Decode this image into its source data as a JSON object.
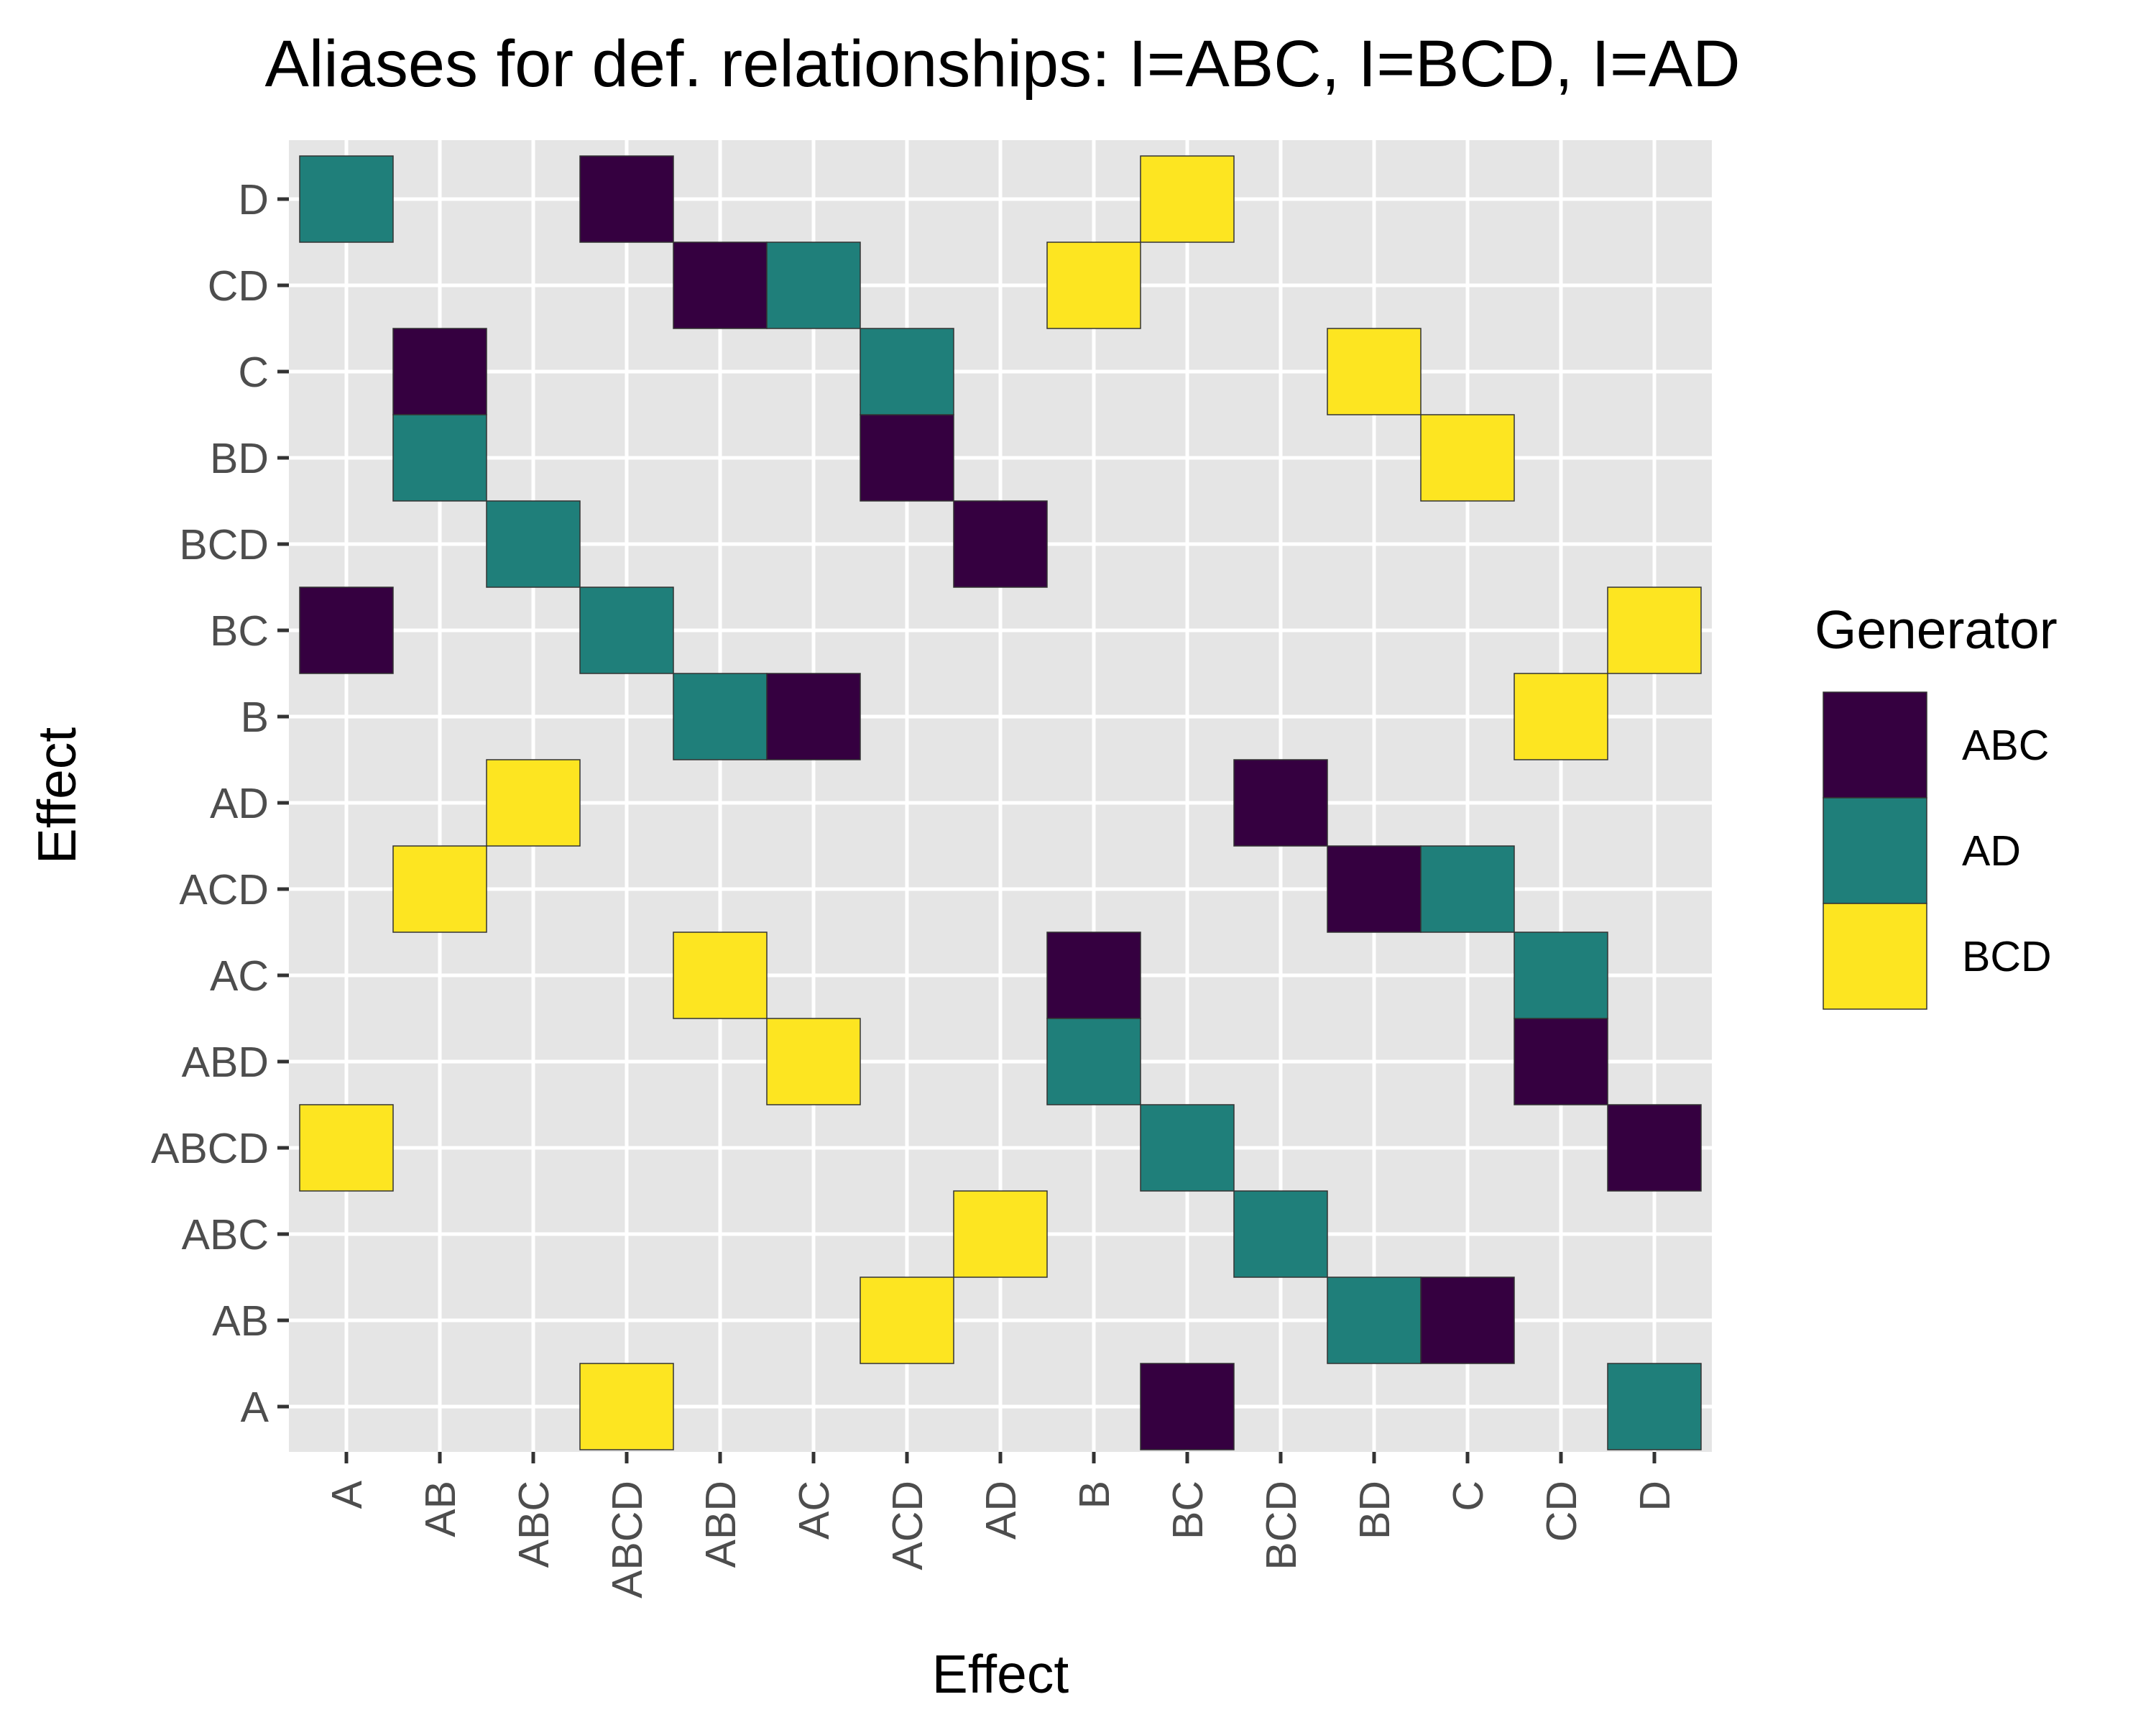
{
  "chart_data": {
    "type": "heatmap",
    "title": "Aliases for def. relationships: I=ABC, I=BCD, I=AD",
    "xlabel": "Effect",
    "ylabel": "Effect",
    "x_categories": [
      "A",
      "AB",
      "ABC",
      "ABCD",
      "ABD",
      "AC",
      "ACD",
      "AD",
      "B",
      "BC",
      "BCD",
      "BD",
      "C",
      "CD",
      "D"
    ],
    "y_categories": [
      "A",
      "AB",
      "ABC",
      "ABCD",
      "ABD",
      "AC",
      "ACD",
      "AD",
      "B",
      "BC",
      "BCD",
      "BD",
      "C",
      "CD",
      "D"
    ],
    "legend": {
      "title": "Generator",
      "position": "right",
      "entries": [
        {
          "label": "ABC",
          "color": "#350040"
        },
        {
          "label": "AD",
          "color": "#1f7f7a"
        },
        {
          "label": "BCD",
          "color": "#fde521"
        }
      ]
    },
    "grid": true,
    "background_color": "#e5e5e5",
    "grid_color": "#ffffff",
    "cells": [
      {
        "x": "A",
        "y": "BC",
        "generator": "ABC"
      },
      {
        "x": "A",
        "y": "D",
        "generator": "AD"
      },
      {
        "x": "A",
        "y": "ABCD",
        "generator": "BCD"
      },
      {
        "x": "AB",
        "y": "C",
        "generator": "ABC"
      },
      {
        "x": "AB",
        "y": "BD",
        "generator": "AD"
      },
      {
        "x": "AB",
        "y": "ACD",
        "generator": "BCD"
      },
      {
        "x": "ABC",
        "y": "BCD",
        "generator": "AD"
      },
      {
        "x": "ABC",
        "y": "AD",
        "generator": "BCD"
      },
      {
        "x": "ABCD",
        "y": "D",
        "generator": "ABC"
      },
      {
        "x": "ABCD",
        "y": "BC",
        "generator": "AD"
      },
      {
        "x": "ABCD",
        "y": "A",
        "generator": "BCD"
      },
      {
        "x": "ABD",
        "y": "CD",
        "generator": "ABC"
      },
      {
        "x": "ABD",
        "y": "B",
        "generator": "AD"
      },
      {
        "x": "ABD",
        "y": "AC",
        "generator": "BCD"
      },
      {
        "x": "AC",
        "y": "B",
        "generator": "ABC"
      },
      {
        "x": "AC",
        "y": "CD",
        "generator": "AD"
      },
      {
        "x": "AC",
        "y": "ABD",
        "generator": "BCD"
      },
      {
        "x": "ACD",
        "y": "BD",
        "generator": "ABC"
      },
      {
        "x": "ACD",
        "y": "C",
        "generator": "AD"
      },
      {
        "x": "ACD",
        "y": "AB",
        "generator": "BCD"
      },
      {
        "x": "AD",
        "y": "BCD",
        "generator": "ABC"
      },
      {
        "x": "AD",
        "y": "ABC",
        "generator": "BCD"
      },
      {
        "x": "B",
        "y": "AC",
        "generator": "ABC"
      },
      {
        "x": "B",
        "y": "ABD",
        "generator": "AD"
      },
      {
        "x": "B",
        "y": "CD",
        "generator": "BCD"
      },
      {
        "x": "BC",
        "y": "A",
        "generator": "ABC"
      },
      {
        "x": "BC",
        "y": "ABCD",
        "generator": "AD"
      },
      {
        "x": "BC",
        "y": "D",
        "generator": "BCD"
      },
      {
        "x": "BCD",
        "y": "AD",
        "generator": "ABC"
      },
      {
        "x": "BCD",
        "y": "ABC",
        "generator": "AD"
      },
      {
        "x": "BD",
        "y": "ACD",
        "generator": "ABC"
      },
      {
        "x": "BD",
        "y": "AB",
        "generator": "AD"
      },
      {
        "x": "BD",
        "y": "C",
        "generator": "BCD"
      },
      {
        "x": "C",
        "y": "AB",
        "generator": "ABC"
      },
      {
        "x": "C",
        "y": "ACD",
        "generator": "AD"
      },
      {
        "x": "C",
        "y": "BD",
        "generator": "BCD"
      },
      {
        "x": "CD",
        "y": "ABD",
        "generator": "ABC"
      },
      {
        "x": "CD",
        "y": "AC",
        "generator": "AD"
      },
      {
        "x": "CD",
        "y": "B",
        "generator": "BCD"
      },
      {
        "x": "D",
        "y": "ABCD",
        "generator": "ABC"
      },
      {
        "x": "D",
        "y": "A",
        "generator": "AD"
      },
      {
        "x": "D",
        "y": "BC",
        "generator": "BCD"
      }
    ]
  }
}
